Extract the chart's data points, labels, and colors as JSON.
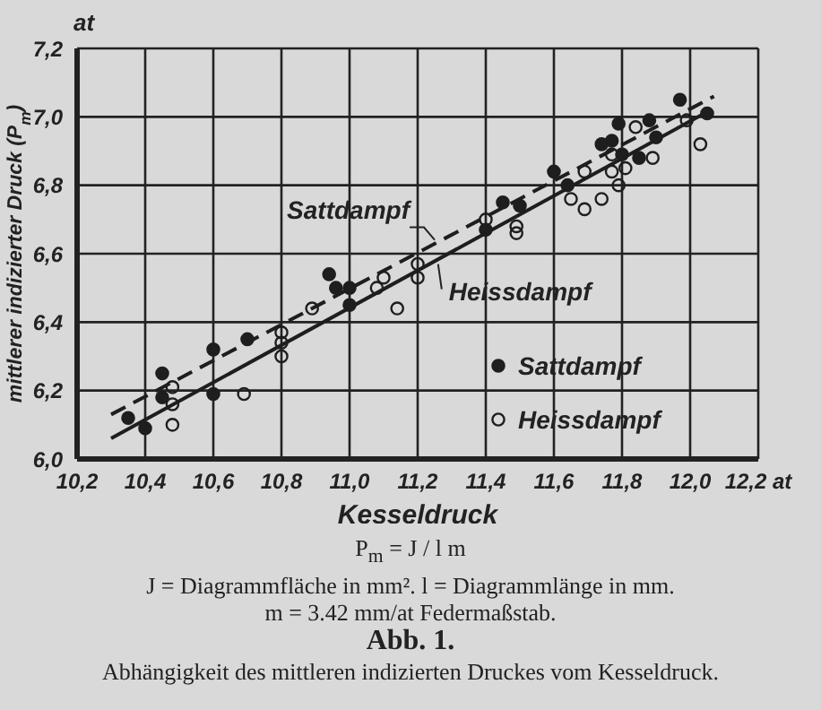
{
  "chart_data": {
    "type": "scatter",
    "ylabel": "mittlerer indizierter Druck (P$_{m}$)",
    "xlabel": "Kesseldruck",
    "title": "Abb. 1.",
    "subtitle": "Abhängigkeit des mittleren indizierten Druckes vom Kesseldruck.",
    "xlim": [
      10.2,
      12.2
    ],
    "ylim": [
      6.0,
      7.2
    ],
    "xticks": [
      {
        "value": 10.2,
        "label": "10,2"
      },
      {
        "value": 10.4,
        "label": "10,4"
      },
      {
        "value": 10.6,
        "label": "10,6"
      },
      {
        "value": 10.8,
        "label": "10,8"
      },
      {
        "value": 11.0,
        "label": "11,0"
      },
      {
        "value": 11.2,
        "label": "11,2"
      },
      {
        "value": 11.4,
        "label": "11,4"
      },
      {
        "value": 11.6,
        "label": "11,6"
      },
      {
        "value": 11.8,
        "label": "11,8"
      },
      {
        "value": 12.0,
        "label": "12,0"
      },
      {
        "value": 12.2,
        "label": "12,2 at"
      }
    ],
    "yticks": [
      {
        "value": 6.0,
        "label": "6,0"
      },
      {
        "value": 6.2,
        "label": "6,2"
      },
      {
        "value": 6.4,
        "label": "6,4"
      },
      {
        "value": 6.6,
        "label": "6,6"
      },
      {
        "value": 6.8,
        "label": "6,8"
      },
      {
        "value": 7.0,
        "label": "7,0"
      },
      {
        "value": 7.2,
        "label": "7,2"
      }
    ],
    "grid": true,
    "legend": "bottom right",
    "series": [
      {
        "name": "Sattdampf",
        "marker": "circle",
        "color": "#1e1e1e",
        "x": [
          10.35,
          10.4,
          10.45,
          10.45,
          10.6,
          10.6,
          10.7,
          10.94,
          10.96,
          11.0,
          11.0,
          11.4,
          11.45,
          11.5,
          11.6,
          11.64,
          11.74,
          11.77,
          11.79,
          11.8,
          11.85,
          11.88,
          11.9,
          11.97,
          12.05
        ],
        "values": [
          6.12,
          6.09,
          6.25,
          6.18,
          6.32,
          6.19,
          6.35,
          6.54,
          6.5,
          6.5,
          6.45,
          6.67,
          6.75,
          6.74,
          6.84,
          6.8,
          6.92,
          6.93,
          6.98,
          6.89,
          6.88,
          6.99,
          6.94,
          7.05,
          7.01
        ]
      },
      {
        "name": "Heissdampf",
        "marker": "circle",
        "color": "#1e1e1e",
        "x": [
          10.48,
          10.48,
          10.48,
          10.69,
          10.8,
          10.8,
          10.8,
          10.89,
          11.08,
          11.1,
          11.14,
          11.2,
          11.2,
          11.4,
          11.49,
          11.49,
          11.65,
          11.69,
          11.69,
          11.74,
          11.77,
          11.77,
          11.79,
          11.81,
          11.84,
          11.89,
          11.99,
          12.03
        ],
        "values": [
          6.21,
          6.16,
          6.1,
          6.19,
          6.37,
          6.34,
          6.3,
          6.44,
          6.5,
          6.53,
          6.44,
          6.57,
          6.53,
          6.7,
          6.68,
          6.66,
          6.76,
          6.84,
          6.73,
          6.76,
          6.84,
          6.89,
          6.8,
          6.85,
          6.97,
          6.88,
          6.99,
          6.92
        ]
      },
      {
        "type": "line",
        "line_style": "dashed",
        "color": "#1e1e1e",
        "x": [
          10.3,
          12.07
        ],
        "values": [
          6.13,
          7.06
        ]
      },
      {
        "type": "line",
        "line_style": "solid",
        "color": "#1e1e1e",
        "x": [
          10.3,
          12.06
        ],
        "values": [
          6.06,
          7.02
        ]
      }
    ],
    "annotations": [
      "at",
      {
        "text": "Sattdampf",
        "x": 11.25,
        "y": 6.63
      },
      {
        "text": "Heissdampf",
        "x": 11.26,
        "y": 6.58
      },
      "P$_{m}$ = J / l m",
      "J = Diagrammfläche in mm². l = Diagrammlänge in mm.",
      "m = 3.42 mm/at Federmaßstab."
    ]
  }
}
